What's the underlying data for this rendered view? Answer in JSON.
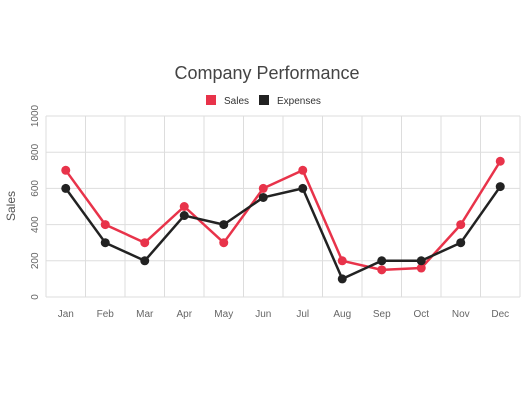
{
  "chart_data": {
    "type": "line",
    "title": "Company Performance",
    "xlabel": "",
    "ylabel": "Sales",
    "categories": [
      "Jan",
      "Feb",
      "Mar",
      "Apr",
      "May",
      "Jun",
      "Jul",
      "Aug",
      "Sep",
      "Oct",
      "Nov",
      "Dec"
    ],
    "ylim": [
      0,
      1000
    ],
    "yticks": [
      "0",
      "200",
      "400",
      "600",
      "800",
      "1000"
    ],
    "grid": true,
    "legend_position": "top-center",
    "series": [
      {
        "name": "Sales",
        "color": "#e8334a",
        "values": [
          700,
          400,
          300,
          500,
          300,
          600,
          700,
          200,
          150,
          160,
          400,
          750
        ]
      },
      {
        "name": "Expenses",
        "color": "#222222",
        "values": [
          600,
          300,
          200,
          450,
          400,
          550,
          600,
          100,
          200,
          200,
          300,
          610
        ]
      }
    ]
  }
}
